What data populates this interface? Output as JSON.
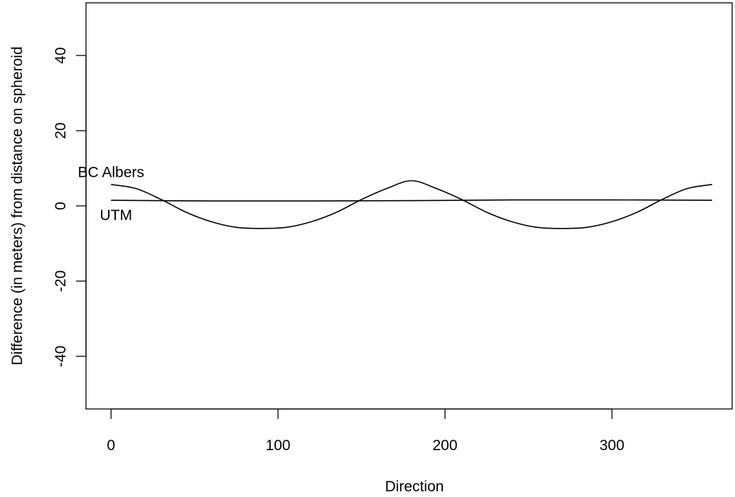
{
  "chart_data": {
    "type": "line",
    "xlabel": "Direction",
    "ylabel": "Difference (in meters) from distance on spheroid",
    "xlim": [
      -15,
      372
    ],
    "ylim": [
      -54,
      54
    ],
    "x_ticks": [
      0,
      100,
      200,
      300
    ],
    "y_ticks": [
      -40,
      -20,
      0,
      20,
      40
    ],
    "grid": false,
    "series": [
      {
        "name": "BC Albers",
        "x": [
          0,
          15,
          30,
          45,
          60,
          75,
          90,
          105,
          120,
          135,
          150,
          165,
          180,
          195,
          210,
          225,
          240,
          255,
          270,
          285,
          300,
          315,
          330,
          345,
          360
        ],
        "y": [
          5.7,
          4.6,
          1.7,
          -1.7,
          -4.2,
          -5.7,
          -6.0,
          -5.7,
          -4.2,
          -1.7,
          1.7,
          4.6,
          6.7,
          4.6,
          1.7,
          -1.7,
          -4.2,
          -5.7,
          -6.0,
          -5.7,
          -4.2,
          -1.7,
          1.7,
          4.6,
          5.7
        ],
        "color": "#000000"
      },
      {
        "name": "UTM",
        "x": [
          0,
          60,
          120,
          180,
          240,
          300,
          360
        ],
        "y": [
          1.5,
          1.3,
          1.3,
          1.4,
          1.6,
          1.6,
          1.5
        ],
        "color": "#000000"
      }
    ],
    "annotations": [
      {
        "text": "BC Albers",
        "x": 0,
        "y": 9
      },
      {
        "text": "UTM",
        "x": 0,
        "y": -2.5
      }
    ]
  }
}
